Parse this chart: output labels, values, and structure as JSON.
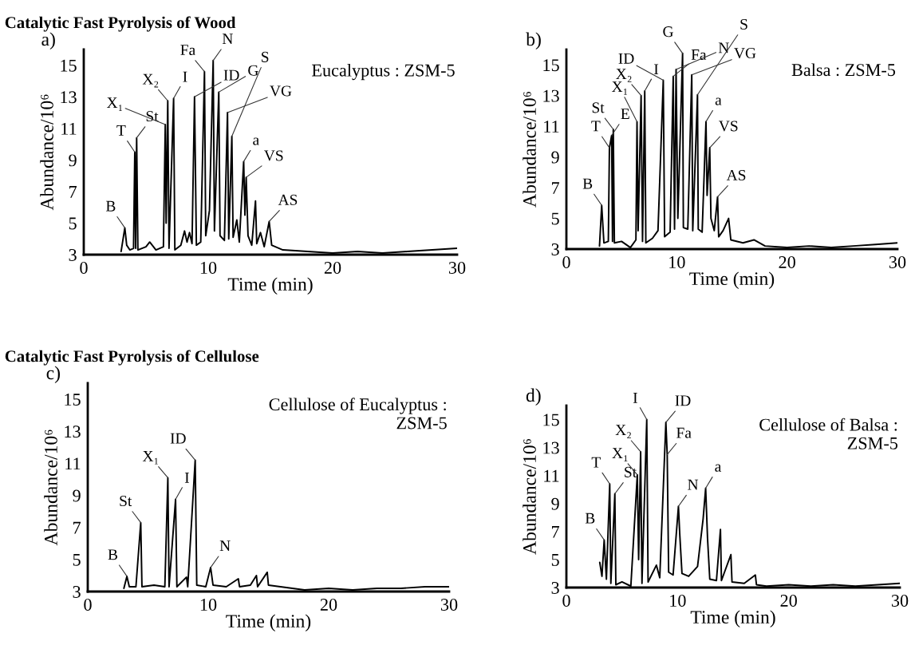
{
  "chart_data": [
    {
      "type": "line",
      "title": "Catalytic Fast Pyrolysis of Wood",
      "subtitle": "a)",
      "xlabel": "Time (min)",
      "ylabel": "Abundance/10⁶",
      "xlim": [
        0,
        30
      ],
      "ylim": [
        3,
        16
      ],
      "xticks": [
        0,
        10,
        20,
        30
      ],
      "yticks": [
        3,
        5,
        7,
        9,
        11,
        13,
        15
      ],
      "series": [
        {
          "color": "#000000",
          "x": [
            3.0,
            3.3,
            3.45,
            3.7,
            4.0,
            4.1,
            4.17,
            4.25,
            4.35,
            5.0,
            5.3,
            5.8,
            6.4,
            6.55,
            6.62,
            6.75,
            6.85,
            7.22,
            7.32,
            7.8,
            8.1,
            8.3,
            8.5,
            8.7,
            8.9,
            9.05,
            9.4,
            9.7,
            9.8,
            10.1,
            10.4,
            10.5,
            10.85,
            10.95,
            11.3,
            11.55,
            11.65,
            11.9,
            12.0,
            12.3,
            12.5,
            12.85,
            12.95,
            13.05,
            13.2,
            13.5,
            13.8,
            13.9,
            14.2,
            14.5,
            14.9,
            15.1,
            16,
            18,
            20,
            22,
            24,
            26,
            28,
            30
          ],
          "values": [
            3.2,
            4.7,
            3.6,
            3.3,
            3.4,
            9.5,
            3.4,
            10.4,
            3.3,
            3.5,
            3.8,
            3.3,
            3.5,
            11.25,
            5.0,
            12.75,
            3.4,
            12.9,
            3.3,
            3.6,
            4.5,
            3.8,
            4.4,
            3.7,
            13.0,
            3.6,
            3.8,
            14.6,
            4.2,
            5.8,
            15.3,
            4.5,
            13.3,
            4.2,
            3.9,
            12.0,
            4.0,
            10.5,
            4.1,
            5.2,
            3.8,
            8.9,
            5.5,
            7.9,
            4.2,
            3.6,
            6.4,
            3.7,
            4.4,
            3.5,
            5.1,
            3.6,
            3.3,
            3.2,
            3.1,
            3.2,
            3.1,
            3.2,
            3.3,
            3.4
          ]
        }
      ],
      "annotations": [
        "Eucalyptus : ZSM-5",
        {
          "text": "B",
          "x": 3.3,
          "y": 4.7
        },
        {
          "text": "T",
          "x": 4.1,
          "y": 9.5
        },
        {
          "text": "St",
          "x": 4.25,
          "y": 10.4
        },
        {
          "text": "X₁",
          "x": 6.55,
          "y": 11.25
        },
        {
          "text": "X₂",
          "x": 6.75,
          "y": 12.75
        },
        {
          "text": "I",
          "x": 7.22,
          "y": 12.9
        },
        {
          "text": "ID",
          "x": 8.9,
          "y": 13.0
        },
        {
          "text": "Fa",
          "x": 9.7,
          "y": 14.6
        },
        {
          "text": "N",
          "x": 10.4,
          "y": 15.3
        },
        {
          "text": "G",
          "x": 10.85,
          "y": 13.3
        },
        {
          "text": "VG",
          "x": 11.55,
          "y": 12.0
        },
        {
          "text": "S",
          "x": 11.9,
          "y": 10.5
        },
        {
          "text": "a",
          "x": 12.85,
          "y": 8.9
        },
        {
          "text": "VS",
          "x": 13.05,
          "y": 7.9
        },
        {
          "text": "AS",
          "x": 14.9,
          "y": 5.1
        }
      ]
    },
    {
      "type": "line",
      "subtitle": "b)",
      "xlabel": "Time (min)",
      "ylabel": "Abundance/10⁶",
      "xlim": [
        0,
        30
      ],
      "ylim": [
        3,
        16
      ],
      "xticks": [
        0,
        10,
        20,
        30
      ],
      "yticks": [
        3,
        5,
        7,
        9,
        11,
        13,
        15
      ],
      "series": [
        {
          "color": "#000000",
          "x": [
            3.0,
            3.2,
            3.4,
            3.8,
            3.9,
            4.1,
            4.18,
            4.25,
            4.35,
            5.0,
            5.8,
            6.3,
            6.4,
            6.5,
            6.77,
            6.9,
            7.1,
            7.2,
            7.8,
            8.3,
            8.78,
            8.9,
            9.4,
            9.68,
            9.8,
            9.94,
            10.1,
            10.53,
            10.6,
            11.0,
            11.36,
            11.45,
            11.88,
            11.95,
            12.3,
            12.65,
            12.75,
            12.99,
            13.1,
            13.4,
            13.7,
            13.8,
            14.2,
            14.7,
            14.9,
            16,
            17,
            18,
            20,
            22,
            24,
            26,
            28,
            30
          ],
          "values": [
            3.2,
            5.85,
            3.4,
            3.5,
            9.6,
            10.4,
            3.5,
            10.8,
            3.4,
            3.5,
            3.1,
            3.6,
            11.3,
            4.2,
            13.0,
            3.5,
            13.3,
            3.4,
            3.7,
            4.2,
            14.0,
            3.8,
            4.1,
            14.25,
            4.3,
            14.7,
            5.0,
            15.75,
            4.4,
            4.3,
            14.35,
            4.2,
            13.05,
            4.3,
            4.1,
            11.3,
            6.5,
            9.6,
            5.0,
            4.2,
            6.4,
            3.8,
            4.2,
            5.0,
            3.6,
            3.4,
            3.6,
            3.2,
            3.1,
            3.2,
            3.1,
            3.2,
            3.3,
            3.4
          ]
        }
      ],
      "annotations": [
        "Balsa : ZSM-5",
        {
          "text": "B",
          "x": 3.2,
          "y": 5.85
        },
        {
          "text": "T",
          "x": 3.9,
          "y": 9.6
        },
        {
          "text": "E",
          "x": 4.1,
          "y": 10.4
        },
        {
          "text": "St",
          "x": 4.25,
          "y": 10.8
        },
        {
          "text": "X₁",
          "x": 6.4,
          "y": 11.3
        },
        {
          "text": "X₂",
          "x": 6.77,
          "y": 13.0
        },
        {
          "text": "I",
          "x": 7.1,
          "y": 13.3
        },
        {
          "text": "ID",
          "x": 8.78,
          "y": 14.0
        },
        {
          "text": "Fa",
          "x": 9.68,
          "y": 14.25
        },
        {
          "text": "N",
          "x": 9.94,
          "y": 14.7
        },
        {
          "text": "G",
          "x": 10.53,
          "y": 15.75
        },
        {
          "text": "VG",
          "x": 11.36,
          "y": 14.35
        },
        {
          "text": "S",
          "x": 11.88,
          "y": 13.05
        },
        {
          "text": "a",
          "x": 12.65,
          "y": 11.3
        },
        {
          "text": "VS",
          "x": 12.99,
          "y": 9.6
        },
        {
          "text": "AS",
          "x": 13.7,
          "y": 6.4
        }
      ]
    },
    {
      "type": "line",
      "title": "Catalytic Fast Pyrolysis of Cellulose",
      "subtitle": "c)",
      "xlabel": "Time (min)",
      "ylabel": "Abundance/10⁶",
      "xlim": [
        0,
        30
      ],
      "ylim": [
        3,
        16
      ],
      "xticks": [
        0,
        10,
        20,
        30
      ],
      "yticks": [
        3,
        5,
        7,
        9,
        11,
        13,
        15
      ],
      "series": [
        {
          "color": "#000000",
          "x": [
            3.0,
            3.25,
            3.45,
            4.0,
            4.4,
            4.5,
            5.5,
            6.4,
            6.65,
            6.75,
            7.29,
            7.4,
            8.2,
            8.3,
            8.92,
            9.05,
            9.8,
            10.2,
            10.4,
            11.5,
            12.5,
            12.6,
            13.5,
            14.0,
            14.1,
            14.9,
            15.0,
            16,
            18,
            20,
            22,
            24,
            26,
            28,
            30
          ],
          "values": [
            3.2,
            3.95,
            3.3,
            3.3,
            7.3,
            3.3,
            3.4,
            3.3,
            10.1,
            3.3,
            8.75,
            3.3,
            3.9,
            3.3,
            11.2,
            3.4,
            3.3,
            4.5,
            3.4,
            3.3,
            3.8,
            3.3,
            3.4,
            4.0,
            3.3,
            4.2,
            3.4,
            3.3,
            3.1,
            3.2,
            3.1,
            3.2,
            3.2,
            3.3,
            3.3
          ]
        }
      ],
      "annotations": [
        "Cellulose of Eucalyptus :\nZSM-5",
        {
          "text": "B",
          "x": 3.25,
          "y": 3.95
        },
        {
          "text": "St",
          "x": 4.4,
          "y": 7.3
        },
        {
          "text": "X₁",
          "x": 6.65,
          "y": 10.1
        },
        {
          "text": "I",
          "x": 7.29,
          "y": 8.75
        },
        {
          "text": "ID",
          "x": 8.92,
          "y": 11.2
        },
        {
          "text": "N",
          "x": 10.2,
          "y": 4.5
        }
      ]
    },
    {
      "type": "line",
      "subtitle": "d)",
      "xlabel": "Time (min)",
      "ylabel": "Abundance/10⁶",
      "xlim": [
        0,
        30
      ],
      "ylim": [
        3,
        16
      ],
      "xticks": [
        0,
        10,
        20,
        30
      ],
      "yticks": [
        3,
        5,
        7,
        9,
        11,
        13,
        15
      ],
      "series": [
        {
          "color": "#000000",
          "x": [
            3.0,
            3.2,
            3.4,
            3.6,
            3.9,
            4.0,
            4.36,
            4.45,
            5.0,
            5.8,
            6.38,
            6.5,
            6.68,
            6.8,
            7.23,
            7.35,
            8.1,
            8.4,
            8.95,
            9.07,
            9.2,
            9.6,
            10.08,
            10.2,
            10.4,
            11.0,
            11.8,
            12.3,
            12.53,
            12.7,
            12.9,
            13.5,
            13.86,
            13.95,
            14.8,
            14.9,
            16.0,
            17.0,
            17.1,
            18,
            20,
            22,
            24,
            26,
            28,
            30
          ],
          "values": [
            4.8,
            3.8,
            6.4,
            3.6,
            10.4,
            3.3,
            9.7,
            3.2,
            3.4,
            3.1,
            11.05,
            5.0,
            12.7,
            3.3,
            15.0,
            3.4,
            4.6,
            3.7,
            14.8,
            12.5,
            4.1,
            3.9,
            8.8,
            6.8,
            4.0,
            3.8,
            4.5,
            7.9,
            10.1,
            6.5,
            3.6,
            3.5,
            7.15,
            3.5,
            5.35,
            3.4,
            3.3,
            3.9,
            3.2,
            3.1,
            3.2,
            3.1,
            3.2,
            3.1,
            3.2,
            3.3
          ]
        }
      ],
      "annotations": [
        "Cellulose of Balsa :\nZSM-5",
        {
          "text": "B",
          "x": 3.4,
          "y": 6.4
        },
        {
          "text": "T",
          "x": 3.9,
          "y": 10.4
        },
        {
          "text": "St",
          "x": 4.36,
          "y": 9.7
        },
        {
          "text": "X₁",
          "x": 6.38,
          "y": 11.05
        },
        {
          "text": "X₂",
          "x": 6.68,
          "y": 12.7
        },
        {
          "text": "I",
          "x": 7.23,
          "y": 15.0
        },
        {
          "text": "ID",
          "x": 8.95,
          "y": 14.8
        },
        {
          "text": "Fa",
          "x": 9.07,
          "y": 12.5
        },
        {
          "text": "N",
          "x": 10.08,
          "y": 8.8
        },
        {
          "text": "a",
          "x": 12.53,
          "y": 10.1
        }
      ]
    }
  ]
}
